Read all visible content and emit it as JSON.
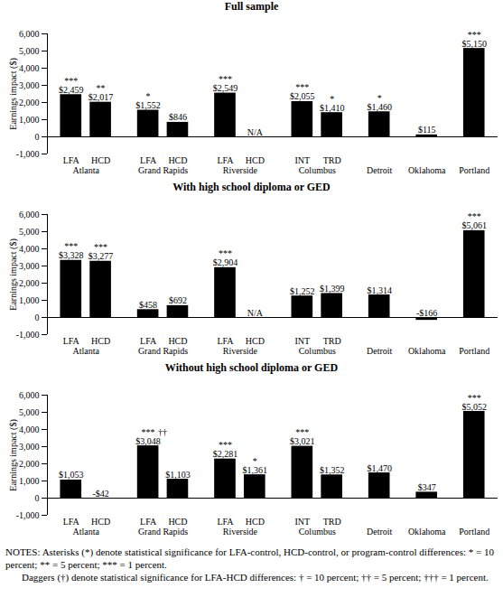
{
  "chart_data": [
    {
      "type": "bar",
      "title": "Full sample",
      "ylabel": "Earnings impact ($)",
      "color": "#000000",
      "data_labels": true,
      "categories": [
        "LFA",
        "HCD",
        "LFA",
        "HCD",
        "LFA",
        "HCD",
        "INT",
        "TRD",
        null,
        null,
        null
      ],
      "sites": [
        "Atlanta",
        "Atlanta",
        "Grand Rapids",
        "Grand Rapids",
        "Riverside",
        "Riverside",
        "Columbus",
        "Columbus",
        "Detroit",
        "Oklahoma",
        "Portland"
      ],
      "values": [
        2459,
        2017,
        1552,
        846,
        2549,
        null,
        2055,
        1410,
        1460,
        115,
        5150
      ],
      "value_labels": [
        "$2,459",
        "$2,017",
        "$1,552",
        "$846",
        "$2,549",
        "N/A",
        "$2,055",
        "$1,410",
        "$1,460",
        "$115",
        "$5,150"
      ],
      "significance": [
        "***",
        "**",
        "*",
        null,
        "***",
        null,
        "***",
        "*",
        "*",
        null,
        "***"
      ],
      "lfa_hcd_significance": [
        null,
        null,
        null,
        null,
        null,
        null,
        null,
        null,
        null,
        null,
        null
      ],
      "ylim": [
        -1000,
        6000
      ],
      "yticks": [
        {
          "value": -1000,
          "label": "-1,000"
        },
        0,
        {
          "value": 1000,
          "label": "1,000"
        },
        {
          "value": 2000,
          "label": "2,000"
        },
        {
          "value": 3000,
          "label": "3,000"
        },
        {
          "value": 4000,
          "label": "4,000"
        },
        {
          "value": 5000,
          "label": "5,000"
        },
        {
          "value": 6000,
          "label": "6,000"
        }
      ]
    },
    {
      "type": "bar",
      "title": "With high school diploma or GED",
      "ylabel": "Earnings impact ($)",
      "color": "#000000",
      "data_labels": true,
      "categories": [
        "LFA",
        "HCD",
        "LFA",
        "HCD",
        "LFA",
        "HCD",
        "INT",
        "TRD",
        null,
        null,
        null
      ],
      "sites": [
        "Atlanta",
        "Atlanta",
        "Grand Rapids",
        "Grand Rapids",
        "Riverside",
        "Riverside",
        "Columbus",
        "Columbus",
        "Detroit",
        "Oklahoma",
        "Portland"
      ],
      "values": [
        3328,
        3277,
        458,
        692,
        2904,
        null,
        1252,
        1399,
        1314,
        -166,
        5061
      ],
      "value_labels": [
        "$3,328",
        "$3,277",
        "$458",
        "$692",
        "$2,904",
        "N/A",
        "$1,252",
        "$1,399",
        "$1,314",
        "-$166",
        "$5,061"
      ],
      "significance": [
        "***",
        "***",
        null,
        null,
        "***",
        null,
        null,
        null,
        null,
        null,
        "***"
      ],
      "lfa_hcd_significance": [
        null,
        null,
        null,
        null,
        null,
        null,
        null,
        null,
        null,
        null,
        null
      ],
      "ylim": [
        -1000,
        6000
      ],
      "yticks": [
        {
          "value": -1000,
          "label": "-1,000"
        },
        0,
        {
          "value": 1000,
          "label": "1,000"
        },
        {
          "value": 2000,
          "label": "2,000"
        },
        {
          "value": 3000,
          "label": "3,000"
        },
        {
          "value": 4000,
          "label": "4,000"
        },
        {
          "value": 5000,
          "label": "5,000"
        },
        {
          "value": 6000,
          "label": "6,000"
        }
      ]
    },
    {
      "type": "bar",
      "title": "Without high school diploma or GED",
      "ylabel": "Earnings impact ($)",
      "color": "#000000",
      "data_labels": true,
      "categories": [
        "LFA",
        "HCD",
        "LFA",
        "HCD",
        "LFA",
        "HCD",
        "INT",
        "TRD",
        null,
        null,
        null
      ],
      "sites": [
        "Atlanta",
        "Atlanta",
        "Grand Rapids",
        "Grand Rapids",
        "Riverside",
        "Riverside",
        "Columbus",
        "Columbus",
        "Detroit",
        "Oklahoma",
        "Portland"
      ],
      "values": [
        1053,
        -42,
        3048,
        1103,
        2281,
        1361,
        3021,
        1352,
        1470,
        347,
        5052
      ],
      "value_labels": [
        "$1,053",
        "-$42",
        "$3,048",
        "$1,103",
        "$2,281",
        "$1,361",
        "$3,021",
        "$1,352",
        "$1,470",
        "$347",
        "$5,052"
      ],
      "significance": [
        null,
        null,
        "***",
        null,
        "***",
        "*",
        "***",
        null,
        null,
        null,
        "***"
      ],
      "lfa_hcd_significance": [
        null,
        null,
        "††",
        null,
        null,
        null,
        null,
        null,
        null,
        null,
        null
      ],
      "ylim": [
        -1000,
        6000
      ],
      "yticks": [
        {
          "value": -1000,
          "label": "-1,000"
        },
        0,
        {
          "value": 1000,
          "label": "1,000"
        },
        {
          "value": 2000,
          "label": "2,000"
        },
        {
          "value": 3000,
          "label": "3,000"
        },
        {
          "value": 4000,
          "label": "4,000"
        },
        {
          "value": 5000,
          "label": "5,000"
        },
        {
          "value": 6000,
          "label": "6,000"
        }
      ]
    }
  ],
  "notes": [
    "NOTES:  Asterisks (*) denote statistical significance for LFA-control, HCD-control, or program-control differences: * = 10 percent; ** = 5 percent; *** = 1 percent.",
    "Daggers (†) denote statistical significance for LFA-HCD differences: † = 10 percent; †† = 5 percent; ††† = 1 percent."
  ]
}
